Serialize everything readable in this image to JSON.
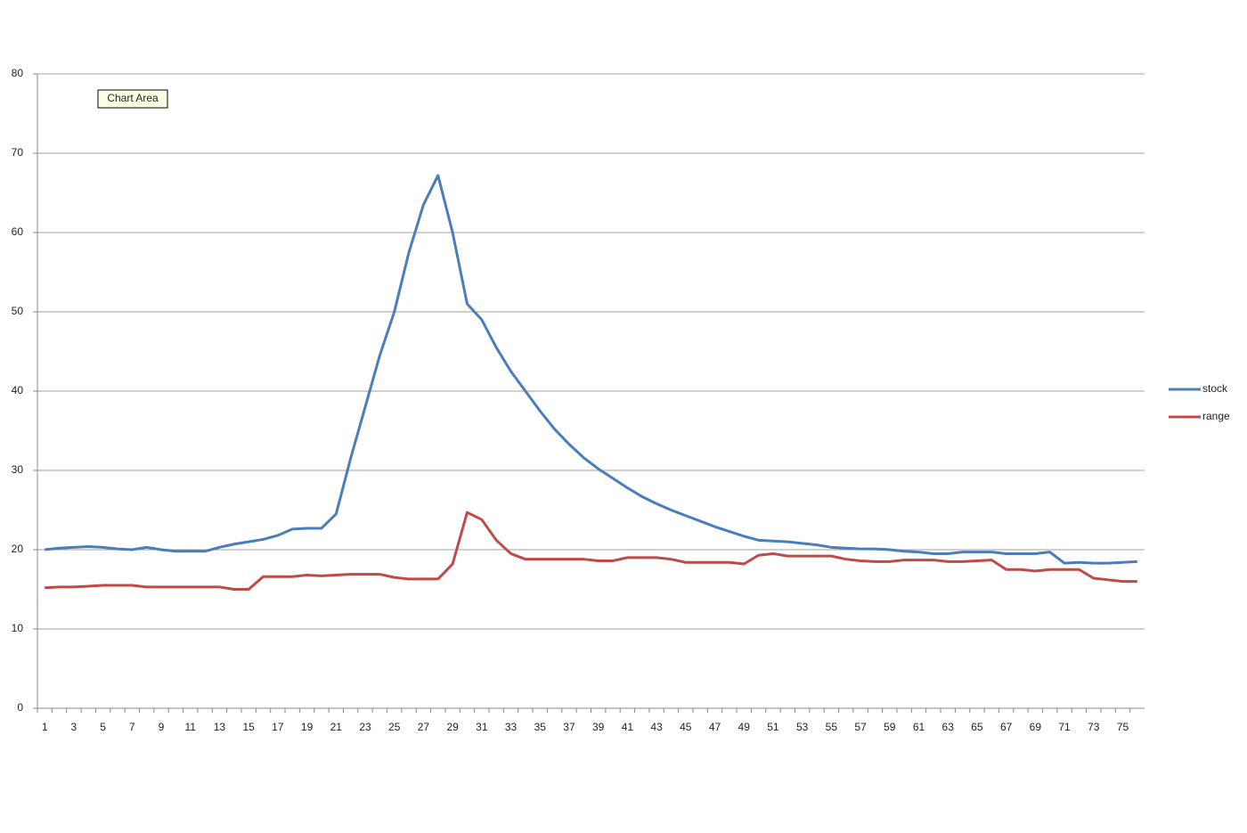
{
  "chart_data": {
    "type": "line",
    "tooltip": "Chart Area",
    "categories": [
      1,
      null,
      3,
      null,
      5,
      null,
      7,
      null,
      9,
      null,
      11,
      null,
      13,
      null,
      15,
      null,
      17,
      null,
      19,
      null,
      21,
      null,
      23,
      null,
      25,
      null,
      27,
      null,
      29,
      null,
      31,
      null,
      33,
      null,
      35,
      null,
      37,
      null,
      39,
      null,
      41,
      null,
      43,
      null,
      45,
      null,
      47,
      null,
      49,
      null,
      51,
      null,
      53,
      null,
      55,
      null,
      57,
      null,
      59,
      null,
      61,
      null,
      63,
      null,
      65,
      null,
      67,
      null,
      69,
      null,
      71,
      null,
      73,
      null,
      75,
      null
    ],
    "series": [
      {
        "name": "stock",
        "color": "#4a7ebb",
        "values": [
          20,
          20.2,
          20.3,
          20.4,
          20.3,
          20.1,
          20,
          20.3,
          20,
          19.8,
          19.8,
          19.8,
          20.3,
          20.7,
          21,
          21.3,
          21.8,
          22.6,
          22.7,
          22.7,
          24.5,
          31.5,
          38,
          44.5,
          50,
          57.5,
          63.5,
          67.2,
          60,
          51,
          49,
          45.5,
          42.5,
          40,
          37.5,
          35.2,
          33.3,
          31.6,
          30.2,
          29,
          27.8,
          26.7,
          25.8,
          25,
          24.3,
          23.6,
          22.9,
          22.3,
          21.7,
          21.2,
          21.1,
          21,
          20.8,
          20.6,
          20.3,
          20.2,
          20.1,
          20.1,
          20,
          19.8,
          19.7,
          19.5,
          19.5,
          19.7,
          19.7,
          19.7,
          19.5,
          19.5,
          19.5,
          19.7,
          18.3,
          18.4,
          18.3,
          18.3,
          18.4,
          18.5
        ]
      },
      {
        "name": "range",
        "color": "#be4b48",
        "values": [
          15.2,
          15.3,
          15.3,
          15.4,
          15.5,
          15.5,
          15.5,
          15.3,
          15.3,
          15.3,
          15.3,
          15.3,
          15.3,
          15,
          15,
          16.6,
          16.6,
          16.6,
          16.8,
          16.7,
          16.8,
          16.9,
          16.9,
          16.9,
          16.5,
          16.3,
          16.3,
          16.3,
          18.2,
          24.7,
          23.8,
          21.2,
          19.5,
          18.8,
          18.8,
          18.8,
          18.8,
          18.8,
          18.6,
          18.6,
          19,
          19,
          19,
          18.8,
          18.4,
          18.4,
          18.4,
          18.4,
          18.2,
          19.3,
          19.5,
          19.2,
          19.2,
          19.2,
          19.2,
          18.8,
          18.6,
          18.5,
          18.5,
          18.7,
          18.7,
          18.7,
          18.5,
          18.5,
          18.6,
          18.7,
          17.5,
          17.5,
          17.3,
          17.5,
          17.5,
          17.5,
          16.4,
          16.2,
          16,
          16
        ]
      }
    ],
    "ylim": [
      0,
      80
    ],
    "yticks": [
      0,
      10,
      20,
      30,
      40,
      50,
      60,
      70,
      80
    ],
    "grid": true,
    "legend": "right"
  }
}
